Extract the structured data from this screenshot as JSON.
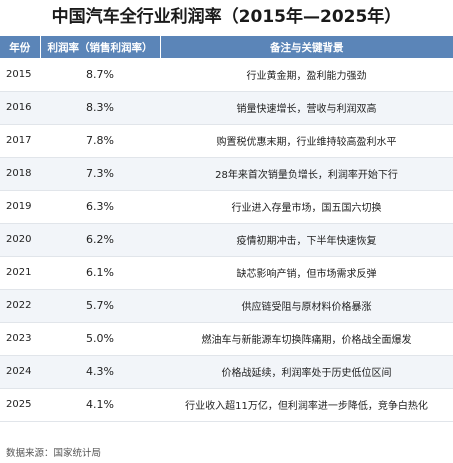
{
  "title": "中国汽车全行业利润率（2015年—2025年）",
  "table": {
    "headers": [
      "年份",
      "利润率（销售利润率）",
      "备注与关键背景"
    ],
    "rows": [
      {
        "year": "2015",
        "rate": "8.7%",
        "note": "行业黄金期，盈利能力强劲"
      },
      {
        "year": "2016",
        "rate": "8.3%",
        "note": "销量快速增长，营收与利润双高"
      },
      {
        "year": "2017",
        "rate": "7.8%",
        "note": "购置税优惠末期，行业维持较高盈利水平"
      },
      {
        "year": "2018",
        "rate": "7.3%",
        "note": "28年来首次销量负增长，利润率开始下行"
      },
      {
        "year": "2019",
        "rate": "6.3%",
        "note": "行业进入存量市场，国五国六切换"
      },
      {
        "year": "2020",
        "rate": "6.2%",
        "note": "疫情初期冲击，下半年快速恢复"
      },
      {
        "year": "2021",
        "rate": "6.1%",
        "note": "缺芯影响产销，但市场需求反弹"
      },
      {
        "year": "2022",
        "rate": "5.7%",
        "note": "供应链受阻与原材料价格暴涨"
      },
      {
        "year": "2023",
        "rate": "5.0%",
        "note": "燃油车与新能源车切换阵痛期，价格战全面爆发"
      },
      {
        "year": "2024",
        "rate": "4.3%",
        "note": "价格战延续，利润率处于历史低位区间"
      },
      {
        "year": "2025",
        "rate": "4.1%",
        "note": "行业收入超11万亿，但利润率进一步降低，竞争白热化"
      }
    ]
  },
  "source": "数据来源：国家统计局",
  "colors": {
    "header_bg": "#5b85b8",
    "header_text": "#ffffff",
    "row_alt": "#f2f5f9"
  }
}
